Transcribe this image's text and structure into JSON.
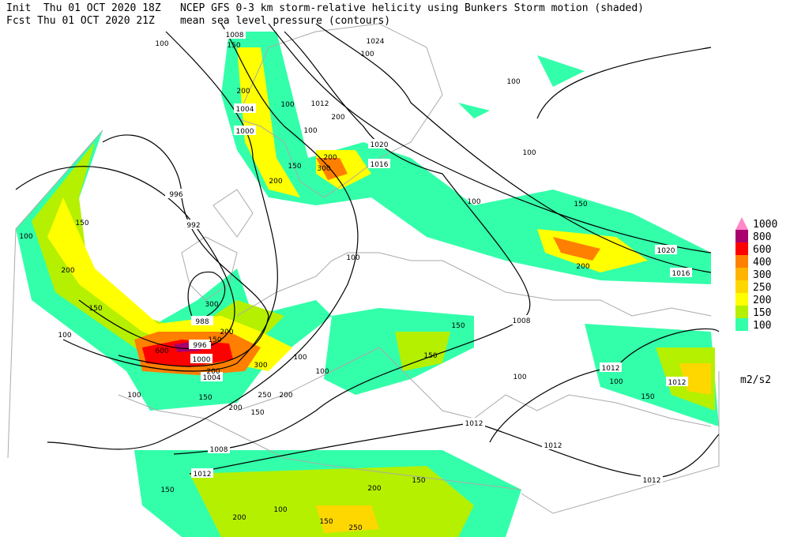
{
  "header": {
    "init": "Init  Thu 01 OCT 2020 18Z",
    "fcst": "Fcst Thu 01 OCT 2020 21Z",
    "title": "NCEP GFS 0-3 km storm-relative helicity using Bunkers Storm motion (shaded)",
    "subtitle": "mean sea level pressure (contours)"
  },
  "legend": {
    "items": [
      {
        "label": "1000",
        "color": "#ff88c8"
      },
      {
        "label": "800",
        "color": "#a8006e"
      },
      {
        "label": "600",
        "color": "#ff0000"
      },
      {
        "label": "400",
        "color": "#ff7f00"
      },
      {
        "label": "300",
        "color": "#ffb400"
      },
      {
        "label": "250",
        "color": "#ffd700"
      },
      {
        "label": "200",
        "color": "#ffff00"
      },
      {
        "label": "150",
        "color": "#b4f000"
      },
      {
        "label": "100",
        "color": "#33ffaa"
      }
    ],
    "unit": "m2/s2"
  },
  "isobar_labels": [
    "1008",
    "1024",
    "1012",
    "1004",
    "1000",
    "1020",
    "1016",
    "996",
    "992",
    "988",
    "996",
    "1000",
    "1004",
    "1008",
    "1012",
    "1012",
    "1012",
    "1012",
    "1012",
    "1008",
    "1012",
    "1020",
    "1016"
  ],
  "shade_labels": [
    "100",
    "150",
    "200",
    "150",
    "100",
    "100",
    "100",
    "100",
    "150",
    "200",
    "100",
    "150",
    "150",
    "100",
    "100",
    "200",
    "250",
    "300",
    "150",
    "100",
    "150",
    "100",
    "150",
    "200",
    "150",
    "250",
    "100",
    "200",
    "150",
    "100",
    "150",
    "200",
    "600",
    "300",
    "150",
    "200",
    "200",
    "100",
    "150",
    "200",
    "100",
    "100",
    "200",
    "150",
    "200",
    "300",
    "100",
    "200"
  ]
}
